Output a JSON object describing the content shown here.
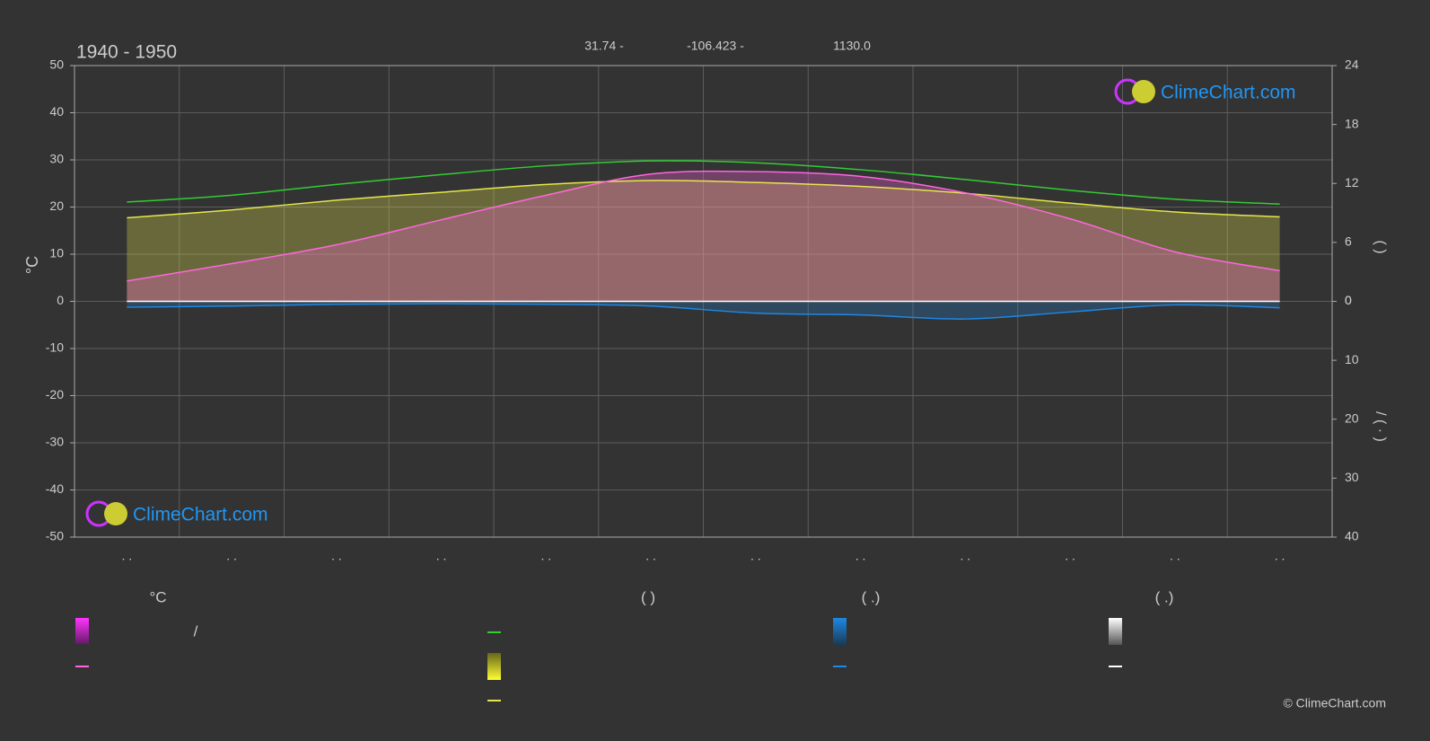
{
  "header": {
    "period": "1940 - 1950",
    "lat": "31.74 -",
    "lon": "-106.423 -",
    "elev": "1130.0"
  },
  "logo": "ClimeChart.com",
  "copyright": "© ClimeChart.com",
  "legend": {
    "headers": [
      "°C",
      "(          )",
      "(   .)",
      "(   .)"
    ],
    "labels": [
      "/"
    ]
  },
  "chart_data": {
    "type": "line",
    "ylabel": "°C",
    "y2label": "(      )",
    "y3label": "/    (  ·  )",
    "categories": [
      ". .",
      ". .",
      ". .",
      ". .",
      ". .",
      ". .",
      ". .",
      ". .",
      ". .",
      ". .",
      ". .",
      ". ."
    ],
    "ylim": [
      -50,
      50
    ],
    "yticks": [
      -50,
      -40,
      -30,
      -20,
      -10,
      0,
      10,
      20,
      30,
      40,
      50
    ],
    "y2lim": [
      0,
      24
    ],
    "y2ticks": [
      0,
      6,
      12,
      18,
      24
    ],
    "y3lim": [
      0,
      40
    ],
    "y3ticks": [
      0,
      10,
      20,
      30,
      40
    ],
    "grid": true,
    "series": [
      {
        "color": "#33cc33",
        "axis": "y2",
        "values": [
          10.1,
          10.8,
          11.9,
          12.9,
          13.8,
          14.3,
          14.1,
          13.4,
          12.4,
          11.3,
          10.4,
          9.9
        ]
      },
      {
        "color": "#e6e64c",
        "axis": "y2",
        "area": true,
        "values": [
          8.5,
          9.3,
          10.3,
          11.1,
          11.9,
          12.3,
          12.1,
          11.7,
          11.0,
          10.0,
          9.1,
          8.6
        ]
      },
      {
        "color": "#ff66dd",
        "area": true,
        "values": [
          4.3,
          8.0,
          12.0,
          17.3,
          22.5,
          27.0,
          27.5,
          26.5,
          23.0,
          17.5,
          10.5,
          6.5
        ]
      },
      {
        "color": "#1e88e5",
        "axis": "y3",
        "area": true,
        "values": [
          1.0,
          0.8,
          0.5,
          0.4,
          0.5,
          0.8,
          2.0,
          2.3,
          3.0,
          1.8,
          0.6,
          1.1
        ]
      },
      {
        "color": "#ffffff",
        "axis": "y3",
        "values": [
          0,
          0,
          0,
          0,
          0,
          0,
          0,
          0,
          0,
          0,
          0,
          0
        ]
      }
    ]
  }
}
